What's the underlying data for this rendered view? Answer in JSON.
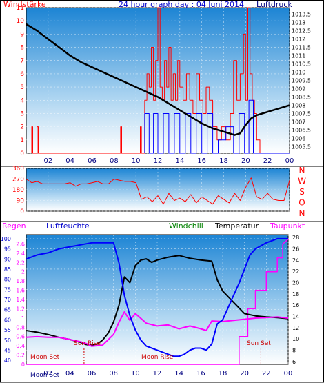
{
  "chart_data": [
    {
      "type": "line",
      "name": "wind-pressure",
      "title": "24 hour graph day : 04 Juni 2014",
      "left_label": "Windstärke",
      "right_label": "Luftdruck",
      "x_ticks": [
        "02",
        "04",
        "06",
        "08",
        "10",
        "12",
        "14",
        "16",
        "18",
        "20",
        "22",
        "00"
      ],
      "y_left_ticks": [
        "0",
        "1",
        "2",
        "3",
        "4",
        "5",
        "6",
        "7",
        "8",
        "9",
        "10",
        "11"
      ],
      "y_right_ticks": [
        "1005.5",
        "1006",
        "1006.5",
        "1007",
        "1007.5",
        "1008",
        "1008.5",
        "1009",
        "1009.5",
        "1010",
        "1010.5",
        "1011",
        "1011.5",
        "1012",
        "1012.5",
        "1013",
        "1013.5"
      ],
      "y_left_range": [
        0,
        11
      ],
      "y_right_range": [
        1005.1,
        1013.9
      ],
      "x_range_hours": [
        0,
        24
      ],
      "colors": {
        "wind": "#ff0000",
        "gust": "#0000ff",
        "pressure": "#000000",
        "title": "#0000cc",
        "left": "#ff0000",
        "right": "#000080"
      },
      "pressure": {
        "x": [
          0,
          1,
          2,
          3,
          4,
          5,
          6,
          7,
          8,
          9,
          10,
          11,
          12,
          13,
          14,
          15,
          16,
          17,
          18,
          19,
          19.5,
          20,
          20.5,
          21,
          22,
          23,
          24
        ],
        "y": [
          1012.9,
          1012.5,
          1012.0,
          1011.5,
          1011.0,
          1010.6,
          1010.3,
          1010.0,
          1009.7,
          1009.4,
          1009.1,
          1008.8,
          1008.5,
          1008.1,
          1007.7,
          1007.3,
          1006.9,
          1006.6,
          1006.4,
          1006.2,
          1006.3,
          1006.8,
          1007.2,
          1007.4,
          1007.6,
          1007.8,
          1008.0
        ]
      },
      "wind": {
        "x": [
          0.5,
          0.5,
          0.6,
          0.6,
          1.0,
          1.0,
          1.1,
          1.1,
          8.6,
          8.6,
          8.7,
          8.7,
          10.4,
          10.4,
          10.5,
          10.5,
          10.8,
          10.8,
          11.0,
          11.0,
          11.2,
          11.2,
          11.4,
          11.4,
          11.6,
          11.6,
          11.8,
          11.8,
          12.0,
          12.0,
          12.2,
          12.2,
          12.4,
          12.4,
          12.6,
          12.6,
          12.8,
          12.8,
          13.0,
          13.0,
          13.2,
          13.2,
          13.4,
          13.4,
          13.6,
          13.6,
          13.8,
          13.8,
          14.0,
          14.0,
          14.3,
          14.3,
          14.6,
          14.6,
          14.9,
          14.9,
          15.2,
          15.2,
          15.5,
          15.5,
          15.8,
          15.8,
          16.1,
          16.1,
          16.4,
          16.4,
          16.7,
          16.7,
          17.0,
          17.0,
          17.4,
          17.4,
          17.8,
          17.8,
          18.2,
          18.2,
          18.6,
          18.6,
          18.9,
          18.9,
          19.2,
          19.2,
          19.5,
          19.5,
          19.8,
          19.8,
          20.0,
          20.0,
          20.2,
          20.2,
          20.4,
          20.4,
          20.6,
          20.6,
          20.8,
          20.8,
          21.0,
          21.0,
          21.3,
          21.3,
          24
        ],
        "y": [
          0,
          2,
          2,
          0,
          0,
          2,
          2,
          0,
          0,
          2,
          2,
          0,
          0,
          2,
          2,
          0,
          0,
          4,
          4,
          6,
          6,
          5,
          5,
          8,
          8,
          4,
          4,
          7,
          7,
          11,
          11,
          5,
          5,
          4,
          4,
          7,
          7,
          5,
          5,
          8,
          8,
          4,
          4,
          6,
          6,
          4,
          4,
          7,
          7,
          5,
          5,
          4,
          4,
          6,
          6,
          4,
          4,
          3,
          3,
          6,
          6,
          4,
          4,
          3,
          3,
          5,
          5,
          4,
          4,
          2,
          2,
          1,
          1,
          2,
          2,
          1,
          1,
          3,
          3,
          7,
          7,
          4,
          4,
          6,
          6,
          9,
          9,
          4,
          4,
          11,
          11,
          6,
          6,
          4,
          4,
          3,
          3,
          1,
          1,
          0,
          0
        ]
      },
      "gust": {
        "x": [
          10.8,
          10.8,
          11.2,
          11.2,
          11.6,
          11.6,
          12.0,
          12.0,
          12.5,
          12.5,
          13.0,
          13.0,
          13.5,
          13.5,
          14.0,
          14.0,
          14.5,
          14.5,
          15.0,
          15.0,
          15.5,
          15.5,
          16.0,
          16.0,
          16.5,
          16.5,
          17.0,
          17.0,
          17.5,
          17.5,
          18.2,
          18.2,
          18.9,
          18.9,
          19.4,
          19.4,
          19.9,
          19.9,
          20.3,
          20.3,
          20.7,
          20.7,
          21.2,
          21.2,
          24
        ],
        "y": [
          0,
          3,
          3,
          0,
          0,
          3,
          3,
          0,
          0,
          3,
          3,
          0,
          0,
          3,
          3,
          0,
          0,
          3,
          3,
          0,
          0,
          3,
          3,
          0,
          0,
          3,
          3,
          0,
          0,
          1,
          1,
          2,
          2,
          0,
          0,
          3,
          3,
          0,
          0,
          4,
          4,
          0,
          0,
          0,
          0
        ]
      }
    },
    {
      "type": "line",
      "name": "wind-direction",
      "y_ticks": [
        "360",
        "270",
        "180",
        "90",
        "0"
      ],
      "direction_labels": [
        "N",
        "W",
        "S",
        "O",
        "N"
      ],
      "y_range": [
        0,
        360
      ],
      "x_range_hours": [
        0,
        24
      ],
      "color": "#ff0000",
      "x": [
        0,
        0.5,
        1,
        1.5,
        2,
        2.5,
        3,
        3.5,
        4,
        4.5,
        5,
        5.5,
        6,
        6.5,
        7,
        7.5,
        8,
        8.5,
        9,
        9.5,
        10,
        10.5,
        11,
        11.5,
        12,
        12.5,
        13,
        13.5,
        14,
        14.5,
        15,
        15.5,
        16,
        16.5,
        17,
        17.5,
        18,
        18.5,
        19,
        19.5,
        20,
        20.5,
        21,
        21.5,
        22,
        22.5,
        23,
        23.5,
        24
      ],
      "y": [
        270,
        240,
        250,
        230,
        230,
        230,
        230,
        230,
        240,
        210,
        230,
        230,
        240,
        250,
        230,
        230,
        270,
        260,
        250,
        250,
        240,
        100,
        120,
        80,
        130,
        60,
        150,
        90,
        110,
        80,
        140,
        70,
        120,
        90,
        60,
        130,
        100,
        70,
        150,
        90,
        200,
        280,
        120,
        100,
        150,
        100,
        90,
        90,
        260
      ]
    },
    {
      "type": "line",
      "name": "humidity-temperature",
      "labels": {
        "regen": "Regen",
        "luftfeuchte": "Luftfeuchte",
        "windchill": "Windchill",
        "temperatur": "Temperatur",
        "taupunkt": "Taupunkt"
      },
      "annotations": {
        "moon_set": "Moon Set",
        "sun_rise": "Sun Rise",
        "moon_rise": "Moon Rise",
        "sun_set": "Sun Set"
      },
      "x_ticks_note": "Moon Set",
      "y_humidity_ticks": [
        "40",
        "45",
        "50",
        "55",
        "60",
        "65",
        "70",
        "75",
        "80",
        "85",
        "90",
        "95",
        "100"
      ],
      "y_rain_ticks": [
        "0",
        "0.2",
        "0.4",
        "0.6",
        "0.8",
        "1",
        "1.2",
        "1.4",
        "1.6",
        "1.8",
        "2",
        "2.2",
        "2.4",
        "2.6"
      ],
      "y_temp_ticks": [
        "6",
        "8",
        "10",
        "12",
        "14",
        "16",
        "18",
        "20",
        "22",
        "24",
        "26",
        "28"
      ],
      "humidity_range": [
        38,
        102
      ],
      "temp_range": [
        5.5,
        28.5
      ],
      "x_range_hours": [
        0,
        24
      ],
      "colors": {
        "humidity": "#0000ff",
        "temperature": "#000000",
        "dewpoint": "#ff00ff",
        "rain": "#ff00ff",
        "regen": "#ff00ff",
        "luftfeuchte": "#0000cc",
        "windchill": "#008000",
        "temperatur": "#000000",
        "taupunkt": "#ff00ff"
      },
      "humidity": {
        "x": [
          0,
          1,
          2,
          3,
          4,
          5,
          6,
          7,
          8,
          8.5,
          9,
          9.5,
          10,
          10.5,
          11,
          11.5,
          12,
          12.5,
          13,
          13.5,
          14,
          14.5,
          15,
          15.5,
          16,
          16.5,
          17,
          17.5,
          18,
          18.5,
          19,
          19.5,
          20,
          20.5,
          21,
          22,
          23,
          24
        ],
        "y": [
          90,
          92,
          93,
          95,
          96,
          97,
          98,
          98,
          98,
          88,
          72,
          62,
          55,
          50,
          47,
          46,
          45,
          44,
          43,
          42,
          42,
          43,
          45,
          46,
          46,
          45,
          48,
          58,
          60,
          66,
          72,
          78,
          85,
          92,
          95,
          98,
          100,
          100
        ]
      },
      "temperature": {
        "x": [
          0,
          1,
          2,
          3,
          4,
          5,
          5.5,
          6,
          6.5,
          7,
          7.5,
          8,
          8.5,
          9,
          9.5,
          10,
          10.5,
          11,
          11.5,
          12,
          13,
          14,
          15,
          16,
          17,
          17.5,
          18,
          19,
          20,
          21,
          22,
          23,
          24
        ],
        "y": [
          11.5,
          11.2,
          10.8,
          10.3,
          9.9,
          9.4,
          9.0,
          8.9,
          9.1,
          9.8,
          11.0,
          13.0,
          16.0,
          21.0,
          20.0,
          23.0,
          24.0,
          24.2,
          23.6,
          24.0,
          24.5,
          24.8,
          24.3,
          24.0,
          23.8,
          20.5,
          18.5,
          16.5,
          14.5,
          14.1,
          13.9,
          13.8,
          13.6
        ]
      },
      "dewpoint": {
        "x": [
          0,
          1,
          2,
          3,
          4,
          5,
          5.5,
          6,
          7,
          8,
          8.5,
          9,
          9.5,
          10,
          11,
          12,
          13,
          14,
          15,
          16,
          16.5,
          17,
          18,
          19,
          20,
          21,
          22,
          23,
          24
        ],
        "y": [
          10.3,
          10.4,
          10.3,
          10.3,
          9.9,
          9.5,
          9.2,
          8.7,
          8.9,
          10.8,
          13.0,
          14.8,
          13.3,
          14.5,
          12.8,
          12.3,
          12.5,
          11.8,
          12.3,
          11.8,
          11.5,
          13.2,
          13.1,
          13.3,
          13.5,
          13.7,
          13.8,
          13.9,
          13.7
        ]
      },
      "rain": {
        "x": [
          0,
          19.5,
          19.5,
          20.3,
          20.3,
          21.0,
          21.0,
          22.0,
          22.0,
          23.0,
          23.0,
          23.5,
          23.5,
          24
        ],
        "y": [
          0,
          0,
          0.6,
          0.6,
          1.2,
          1.2,
          1.6,
          1.6,
          2.0,
          2.0,
          2.3,
          2.3,
          2.6,
          2.7
        ]
      }
    }
  ]
}
